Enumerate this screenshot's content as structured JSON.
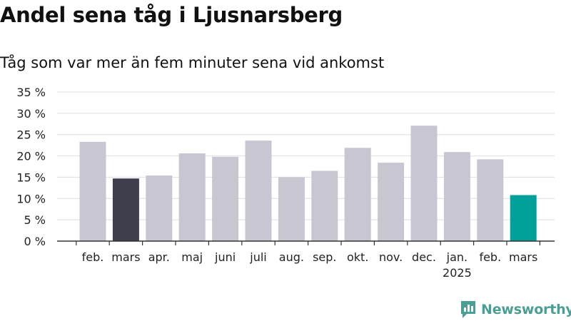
{
  "header": {
    "title": "Andel sena tåg i Ljusnarsberg",
    "subtitle": "Tåg som var mer än fem minuter sena vid ankomst"
  },
  "brand": {
    "name": "Newsworthy"
  },
  "colors": {
    "default_bar": "#c8c6d1",
    "highlight_dark": "#3f3e4c",
    "highlight_current": "#00a19a",
    "grid": "#dddddd",
    "axis": "#333333",
    "brand": "#4a9e93"
  },
  "chart_data": {
    "type": "bar",
    "title": "Andel sena tåg i Ljusnarsberg",
    "subtitle": "Tåg som var mer än fem minuter sena vid ankomst",
    "categories": [
      "feb.",
      "mars",
      "apr.",
      "maj",
      "juni",
      "juli",
      "aug.",
      "sep.",
      "okt.",
      "nov.",
      "dec.",
      "jan.",
      "feb.",
      "mars"
    ],
    "category_sublabels": [
      "",
      "",
      "",
      "",
      "",
      "",
      "",
      "",
      "",
      "",
      "",
      "2025",
      "",
      ""
    ],
    "values": [
      23.3,
      14.7,
      15.4,
      20.6,
      19.8,
      23.6,
      15.0,
      16.5,
      21.9,
      18.4,
      27.1,
      20.9,
      19.2,
      10.8
    ],
    "bar_colors": [
      "#c8c6d1",
      "#3f3e4c",
      "#c8c6d1",
      "#c8c6d1",
      "#c8c6d1",
      "#c8c6d1",
      "#c8c6d1",
      "#c8c6d1",
      "#c8c6d1",
      "#c8c6d1",
      "#c8c6d1",
      "#c8c6d1",
      "#c8c6d1",
      "#00a19a"
    ],
    "ylim": [
      0,
      35
    ],
    "yticks": [
      0,
      5,
      10,
      15,
      20,
      25,
      30,
      35
    ],
    "ytick_labels": [
      "0 %",
      "5 %",
      "10 %",
      "15 %",
      "20 %",
      "25 %",
      "30 %",
      "35 %"
    ],
    "xlabel": "",
    "ylabel": "",
    "grid": true,
    "legend": "none"
  }
}
